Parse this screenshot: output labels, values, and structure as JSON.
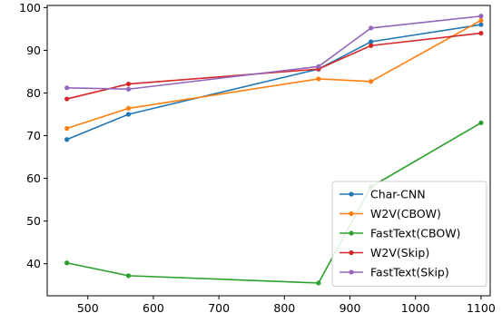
{
  "chart_data": {
    "type": "line",
    "title": "",
    "xlabel": "",
    "ylabel": "",
    "xlim": [
      438,
      1114
    ],
    "ylim": [
      32.5,
      100.5
    ],
    "xticks": [
      500,
      600,
      700,
      800,
      900,
      1000,
      1100
    ],
    "yticks": [
      40,
      50,
      60,
      70,
      80,
      90,
      100
    ],
    "grid": false,
    "legend_position": "lower-right",
    "x": [
      468,
      562,
      852,
      932,
      1100
    ],
    "series": [
      {
        "name": "Char-CNN",
        "color": "#1f77b4",
        "values": [
          69.1,
          75.0,
          85.6,
          92.0,
          96.0
        ]
      },
      {
        "name": "W2V(CBOW)",
        "color": "#ff7f0e",
        "values": [
          71.7,
          76.4,
          83.3,
          82.7,
          97.0
        ]
      },
      {
        "name": "FastText(CBOW)",
        "color": "#2ca02c",
        "values": [
          40.2,
          37.2,
          35.5,
          58.0,
          73.0
        ]
      },
      {
        "name": "W2V(Skip)",
        "color": "#d62728",
        "values": [
          78.6,
          82.1,
          85.6,
          91.1,
          94.0
        ]
      },
      {
        "name": "FastText(Skip)",
        "color": "#9467bd",
        "values": [
          81.2,
          80.9,
          86.2,
          95.2,
          98.0
        ]
      }
    ]
  }
}
